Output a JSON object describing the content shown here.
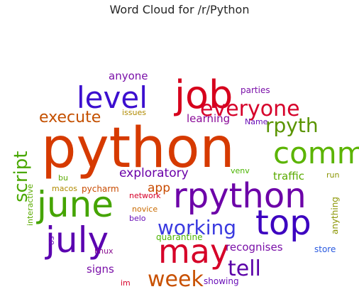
{
  "chart_data": {
    "type": "wordcloud",
    "title": "Word Cloud for /r/Python",
    "words": [
      {
        "text": "python",
        "color": "#d63a00"
      },
      {
        "text": "job",
        "color": "#d6001c"
      },
      {
        "text": "level",
        "color": "#3c0fcf"
      },
      {
        "text": "everyone",
        "color": "#d6002a"
      },
      {
        "text": "comm",
        "color": "#5bb400"
      },
      {
        "text": "rpyth",
        "color": "#5a9400"
      },
      {
        "text": "june",
        "color": "#45a400"
      },
      {
        "text": "rpython",
        "color": "#6c00a8"
      },
      {
        "text": "top",
        "color": "#3c00c0"
      },
      {
        "text": "july",
        "color": "#5a00b0"
      },
      {
        "text": "may",
        "color": "#d60028"
      },
      {
        "text": "working",
        "color": "#3a3ae0"
      },
      {
        "text": "tell",
        "color": "#5a00a8"
      },
      {
        "text": "week",
        "color": "#c85000"
      },
      {
        "text": "execute",
        "color": "#c45000"
      },
      {
        "text": "script",
        "color": "#4aa800"
      },
      {
        "text": "exploratory",
        "color": "#6a00a8"
      },
      {
        "text": "app",
        "color": "#c84a00"
      },
      {
        "text": "anyone",
        "color": "#7a10a8"
      },
      {
        "text": "learning",
        "color": "#8a0a98"
      },
      {
        "text": "issues",
        "color": "#b08a00"
      },
      {
        "text": "parties",
        "color": "#7a10a8"
      },
      {
        "text": "Name",
        "color": "#6a10b8"
      },
      {
        "text": "traffic",
        "color": "#5aaa00"
      },
      {
        "text": "run",
        "color": "#8a9400"
      },
      {
        "text": "venv",
        "color": "#4ab400"
      },
      {
        "text": "bu",
        "color": "#5aaa00"
      },
      {
        "text": "interactive",
        "color": "#5aaa00"
      },
      {
        "text": "macos",
        "color": "#b08a00"
      },
      {
        "text": "pycharm",
        "color": "#c84a00"
      },
      {
        "text": "network",
        "color": "#d6002a"
      },
      {
        "text": "novice",
        "color": "#c86a00"
      },
      {
        "text": "belo",
        "color": "#6a10b8"
      },
      {
        "text": "quarantine",
        "color": "#4ab400"
      },
      {
        "text": "os",
        "color": "#6a10b8"
      },
      {
        "text": "linux",
        "color": "#8a1090"
      },
      {
        "text": "recognises",
        "color": "#7a10a8"
      },
      {
        "text": "store",
        "color": "#2a5ae0"
      },
      {
        "text": "signs",
        "color": "#7a10a8"
      },
      {
        "text": "im",
        "color": "#d6002a"
      },
      {
        "text": "showing",
        "color": "#6a10b8"
      },
      {
        "text": "anything",
        "color": "#8a9400"
      }
    ]
  }
}
